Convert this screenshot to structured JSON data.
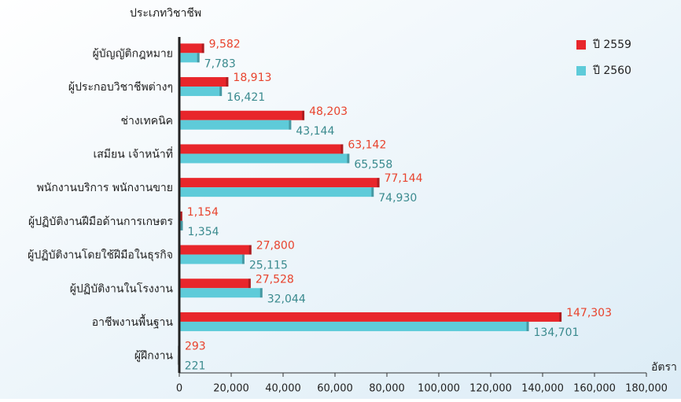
{
  "chart_data": {
    "type": "bar",
    "orientation": "horizontal",
    "y_axis_title": "ประเภทวิชาชีพ",
    "x_axis_title": "อัตรา",
    "categories": [
      "ผู้บัญญัติกฎหมาย",
      "ผู้ประกอบวิชาชีพต่างๆ",
      "ช่างเทคนิค",
      "เสมียน เจ้าหน้าที่",
      "พนักงานบริการ พนักงานขาย",
      "ผู้ปฏิบัติงานฝีมือด้านการเกษตร",
      "ผู้ปฏิบัติงานโดยใช้ฝีมือในธุรกิจ",
      "ผู้ปฏิบัติงานในโรงงาน",
      "อาชีพงานพื้นฐาน",
      "ผู้ฝึกงาน"
    ],
    "series": [
      {
        "name": "ปี 2559",
        "color": "#e8262b",
        "label_color": "#e8432d",
        "values": [
          9582,
          18913,
          48203,
          63142,
          77144,
          1154,
          27800,
          27528,
          147303,
          293
        ],
        "value_labels": [
          "9,582",
          "18,913",
          "48,203",
          "63,142",
          "77,144",
          "1,154",
          "27,800",
          "27,528",
          "147,303",
          "293"
        ]
      },
      {
        "name": "ปี 2560",
        "color": "#5ecbd9",
        "label_color": "#3a8a8e",
        "values": [
          7783,
          16421,
          43144,
          65558,
          74930,
          1354,
          25115,
          32044,
          134701,
          221
        ],
        "value_labels": [
          "7,783",
          "16,421",
          "43,144",
          "65,558",
          "74,930",
          "1,354",
          "25,115",
          "32,044",
          "134,701",
          "221"
        ]
      }
    ],
    "xlim": [
      0,
      180000
    ],
    "xticks": [
      0,
      {
        "value": 20000,
        "label": "20,000"
      },
      {
        "value": 40000,
        "label": "40,000"
      },
      {
        "value": 60000,
        "label": "60,000"
      },
      {
        "value": 80000,
        "label": "80,000"
      },
      {
        "value": 100000,
        "label": "100,000"
      },
      {
        "value": 120000,
        "label": "120,000"
      },
      {
        "value": 140000,
        "label": "140,000"
      },
      {
        "value": 160000,
        "label": "160,000"
      },
      {
        "value": 180000,
        "label": "180,000"
      }
    ],
    "legend": "top-right"
  }
}
